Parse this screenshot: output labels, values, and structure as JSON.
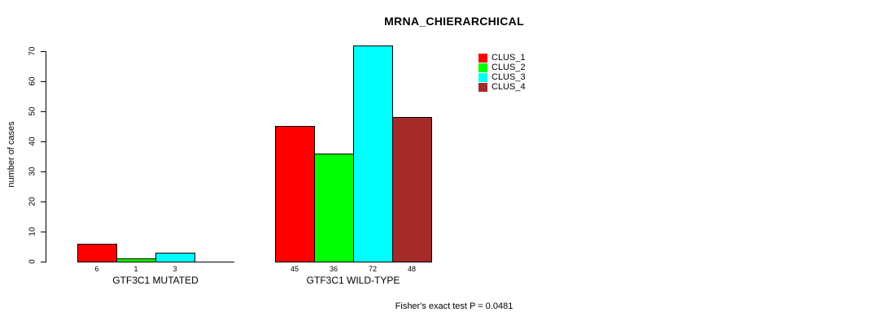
{
  "chart_data": {
    "type": "bar",
    "title": "MRNA_CHIERARCHICAL",
    "ylabel": "number of cases",
    "annotation": "Fisher's exact test P = 0.0481",
    "series": [
      "CLUS_1",
      "CLUS_2",
      "CLUS_3",
      "CLUS_4"
    ],
    "colors": [
      "#ff0000",
      "#00ff00",
      "#00ffff",
      "#a52a2a"
    ],
    "categories": [
      "GTF3C1 MUTATED",
      "GTF3C1 WILD-TYPE"
    ],
    "groups": [
      {
        "label": "GTF3C1 MUTATED",
        "values": [
          6,
          1,
          3,
          0
        ]
      },
      {
        "label": "GTF3C1 WILD-TYPE",
        "values": [
          45,
          36,
          72,
          48
        ]
      }
    ],
    "yticks": [
      0,
      10,
      20,
      30,
      40,
      50,
      60,
      70
    ],
    "ylim": [
      0,
      70
    ],
    "legend_position": "top-right",
    "grid": false,
    "bar_value_labels_shown": true,
    "zero_bars_drawn_as_line": true
  }
}
